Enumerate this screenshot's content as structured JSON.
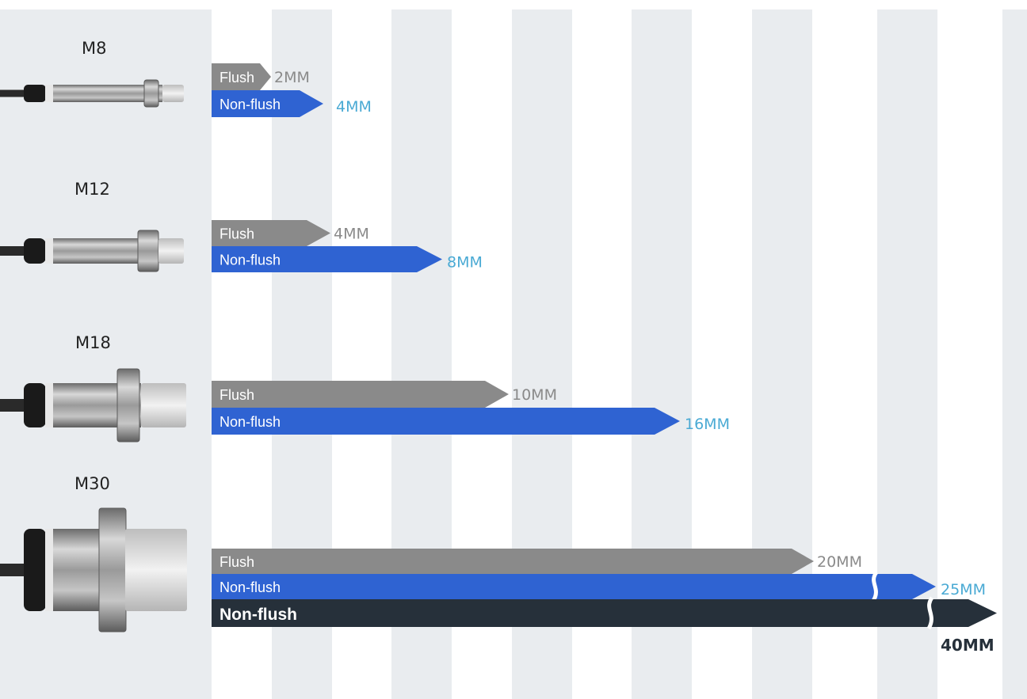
{
  "colors": {
    "background": "#ffffff",
    "stripe": "#e9ecef",
    "flush_bar": "#8a8a8a",
    "nonflush_bar": "#2f63d2",
    "extended_bar": "#26303a",
    "flush_value": "#8a8a8a",
    "nonflush_value": "#4aaad4",
    "extended_value": "#26303a"
  },
  "chart_data": {
    "type": "bar",
    "orientation": "horizontal",
    "unit": "MM",
    "categories": [
      "M8",
      "M12",
      "M18",
      "M30"
    ],
    "series": [
      {
        "name": "Flush",
        "key": "flush",
        "values": [
          2,
          4,
          10,
          20
        ],
        "labels": [
          "2MM",
          "4MM",
          "10MM",
          "20MM"
        ]
      },
      {
        "name": "Non-flush",
        "key": "nonflush",
        "values": [
          4,
          8,
          16,
          25
        ],
        "labels": [
          "4MM",
          "8MM",
          "16MM",
          "25MM"
        ]
      },
      {
        "name": "Non-flush",
        "key": "extended",
        "values": [
          null,
          null,
          null,
          40
        ],
        "labels": [
          "",
          "",
          "",
          "40MM"
        ]
      }
    ],
    "axis_break": true,
    "grid": "vertical-stripes",
    "legend": "none"
  }
}
